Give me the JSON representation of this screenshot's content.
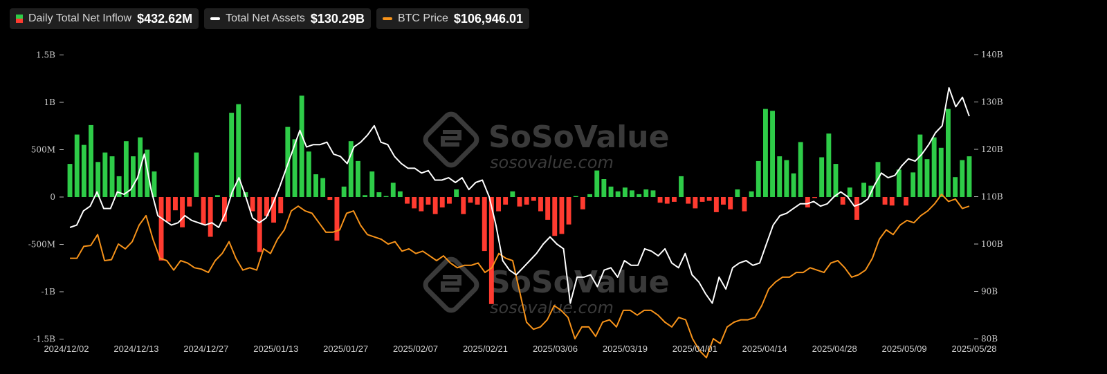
{
  "legend": {
    "inflow_label": "Daily Total Net Inflow",
    "inflow_value": "$432.62M",
    "assets_label": "Total Net Assets",
    "assets_value": "$130.29B",
    "btc_label": "BTC Price",
    "btc_value": "$106,946.01"
  },
  "watermark": {
    "brand": "SoSoValue",
    "site": "sosovalue.com"
  },
  "colors": {
    "positive": "#2ecc48",
    "negative": "#ff3b30",
    "assets_line": "#ffffff",
    "btc_line": "#f7931a",
    "background": "#000000"
  },
  "chart_data": {
    "type": "bar",
    "x_tick_labels": [
      "2024/12/02",
      "2024/12/13",
      "2024/12/27",
      "2025/01/13",
      "2025/01/27",
      "2025/02/07",
      "2025/02/21",
      "2025/03/06",
      "2025/03/19",
      "2025/04/01",
      "2025/04/14",
      "2025/04/28",
      "2025/05/09",
      "2025/05/28"
    ],
    "left_axis": {
      "ticks": [
        "1.5B",
        "1B",
        "500M",
        "0",
        "-500M",
        "-1B",
        "-1.5B"
      ],
      "range": [
        -1500,
        1500
      ],
      "unit": "M"
    },
    "right_axis": {
      "ticks": [
        "140B",
        "130B",
        "120B",
        "110B",
        "100B",
        "90B",
        "80B"
      ],
      "range": [
        80,
        140
      ],
      "unit": "B"
    },
    "grid": false,
    "legend_position": "top-left",
    "series": [
      {
        "name": "Daily Total Net Inflow",
        "type": "bar",
        "axis": "left",
        "values": [
          350,
          660,
          550,
          760,
          370,
          470,
          430,
          220,
          590,
          430,
          630,
          500,
          270,
          -670,
          -260,
          -140,
          -320,
          -100,
          470,
          -290,
          -420,
          20,
          -260,
          890,
          980,
          50,
          -150,
          -580,
          -200,
          -270,
          -170,
          740,
          610,
          1070,
          480,
          240,
          200,
          -30,
          -460,
          110,
          590,
          380,
          20,
          270,
          50,
          10,
          150,
          60,
          -70,
          -120,
          -150,
          -80,
          -180,
          -110,
          -70,
          80,
          -180,
          -60,
          -80,
          -570,
          -1130,
          -150,
          -80,
          60,
          -100,
          -80,
          -40,
          -150,
          -240,
          -410,
          -390,
          -290,
          10,
          -130,
          30,
          280,
          190,
          110,
          60,
          100,
          70,
          30,
          80,
          70,
          -60,
          -70,
          -50,
          220,
          -70,
          -120,
          -50,
          -40,
          -160,
          -80,
          -130,
          80,
          -150,
          60,
          380,
          930,
          910,
          430,
          390,
          250,
          580,
          -110,
          -10,
          420,
          670,
          350,
          -80,
          100,
          -240,
          150,
          120,
          370,
          -80,
          -90,
          290,
          -90,
          260,
          660,
          400,
          630,
          520,
          930,
          210,
          390,
          430
        ]
      },
      {
        "name": "Total Net Assets",
        "type": "line",
        "axis": "right",
        "values": [
          103.5,
          104,
          107,
          108,
          111,
          107.5,
          107.5,
          111,
          110.5,
          111.5,
          114,
          119,
          111.5,
          106,
          105,
          104,
          104.5,
          106,
          105,
          104.5,
          104,
          104.5,
          103.5,
          106.5,
          111,
          114,
          110,
          105.5,
          104.5,
          105.5,
          108.5,
          112,
          116,
          120,
          124,
          120.5,
          121,
          121,
          121.5,
          119,
          118.5,
          117,
          120.5,
          121.5,
          123,
          125,
          121.5,
          121,
          118.5,
          117,
          116,
          116,
          115,
          115.5,
          113.5,
          113.5,
          114,
          113,
          114,
          111.5,
          113,
          113.5,
          110,
          104,
          96.5,
          94.5,
          93.5,
          95,
          96.5,
          98,
          100,
          101.5,
          100,
          99,
          87.5,
          93,
          93,
          93.5,
          91,
          94.5,
          95,
          93,
          96.5,
          95.5,
          95.5,
          99,
          98.5,
          97.5,
          99,
          96,
          95,
          98,
          93.5,
          92,
          89.5,
          87.5,
          93,
          90.5,
          95,
          96,
          96.5,
          95.5,
          96,
          100,
          104,
          106,
          106.5,
          107.5,
          108.5,
          108.5,
          109,
          108,
          108.5,
          110,
          111,
          110,
          108,
          108.5,
          109.5,
          112.5,
          115,
          114,
          114.5,
          116.5,
          118,
          117.5,
          119,
          121,
          123.5,
          125,
          133,
          129,
          131,
          127
        ]
      },
      {
        "name": "BTC Price",
        "type": "line",
        "axis": "right",
        "values": [
          97,
          97,
          99.5,
          99.7,
          102,
          96.5,
          96.7,
          100,
          99,
          100.5,
          104,
          106,
          101,
          97,
          96.5,
          94.5,
          96.5,
          96,
          95,
          94.7,
          94,
          96.5,
          98,
          100.5,
          97,
          94.5,
          95,
          94.5,
          99,
          98,
          101,
          103,
          107,
          108,
          107,
          106.5,
          104.5,
          102.5,
          102.5,
          103,
          106.5,
          107,
          104,
          102,
          101.5,
          101,
          100,
          100.5,
          98.5,
          99,
          98,
          98.5,
          97.5,
          96.5,
          97.5,
          96,
          95,
          95.5,
          95.5,
          96,
          94,
          95,
          98,
          97,
          96.5,
          90,
          83.5,
          82,
          82.5,
          84,
          87,
          86,
          84.5,
          80,
          82.5,
          82.5,
          80.5,
          83.5,
          84,
          82.5,
          86,
          86,
          85,
          86,
          86,
          85,
          83.5,
          82.5,
          84.5,
          84,
          80,
          77.5,
          76,
          80,
          79,
          82.5,
          83.5,
          84,
          84,
          84.5,
          87,
          90.5,
          92,
          93,
          93,
          94,
          94,
          95,
          94.5,
          94,
          96,
          96.5,
          95,
          93,
          93.5,
          94.5,
          97,
          101,
          103,
          102,
          104,
          105,
          104.5,
          106,
          107,
          108.5,
          110.5,
          109,
          109.5,
          107.5,
          108
        ]
      }
    ]
  }
}
